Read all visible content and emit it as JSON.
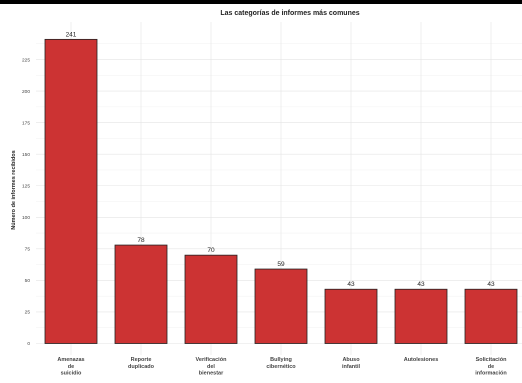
{
  "chart_data": {
    "type": "bar",
    "title": "Las categorías de informes más comunes",
    "ylabel": "Número de informes recibidos",
    "xlabel": "",
    "categories": [
      [
        "Amenazas",
        "de",
        "suicidio"
      ],
      [
        "Reporte",
        "duplicado"
      ],
      [
        "Verificación",
        "del",
        "bienestar"
      ],
      [
        "Bullying",
        "cibernético"
      ],
      [
        "Abuso",
        "infantil"
      ],
      [
        "Autolesiones"
      ],
      [
        "Solicitación",
        "de",
        "información"
      ]
    ],
    "values": [
      241,
      78,
      70,
      59,
      43,
      43,
      43
    ],
    "data_labels": [
      "241",
      "78",
      "70",
      "59",
      "43",
      "43",
      "43"
    ],
    "ylim": [
      0,
      250
    ],
    "yticks": [
      "0",
      "25",
      "50",
      "75",
      "100",
      "125",
      "150",
      "175",
      "200",
      "225"
    ],
    "bar_color": "#cc3333",
    "bar_edge_color": "#222222",
    "grid": true,
    "legend": "none"
  }
}
